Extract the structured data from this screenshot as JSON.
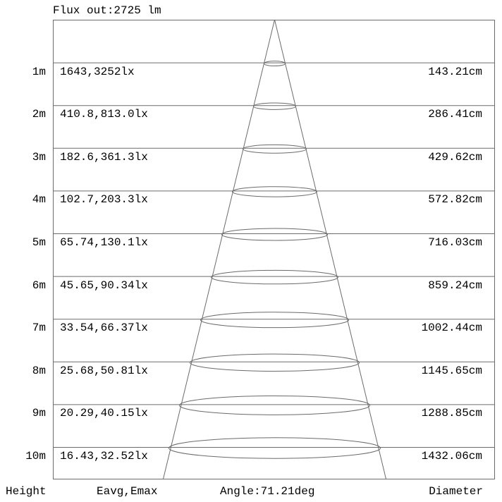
{
  "title": "Flux out:2725 lm",
  "footer": {
    "height_label": "Height",
    "eavg_label": "Eavg,Emax",
    "angle_label": "Angle:71.21deg",
    "diameter_label": "Diameter"
  },
  "rows": [
    {
      "height": "1m",
      "eavg_emax": "1643,3252lx",
      "diameter": "143.21cm"
    },
    {
      "height": "2m",
      "eavg_emax": "410.8,813.0lx",
      "diameter": "286.41cm"
    },
    {
      "height": "3m",
      "eavg_emax": "182.6,361.3lx",
      "diameter": "429.62cm"
    },
    {
      "height": "4m",
      "eavg_emax": "102.7,203.3lx",
      "diameter": "572.82cm"
    },
    {
      "height": "5m",
      "eavg_emax": "65.74,130.1lx",
      "diameter": "716.03cm"
    },
    {
      "height": "6m",
      "eavg_emax": "45.65,90.34lx",
      "diameter": "859.24cm"
    },
    {
      "height": "7m",
      "eavg_emax": "33.54,66.37lx",
      "diameter": "1002.44cm"
    },
    {
      "height": "8m",
      "eavg_emax": "25.68,50.81lx",
      "diameter": "1145.65cm"
    },
    {
      "height": "9m",
      "eavg_emax": "20.29,40.15lx",
      "diameter": "1288.85cm"
    },
    {
      "height": "10m",
      "eavg_emax": "16.43,32.52lx",
      "diameter": "1432.06cm"
    }
  ],
  "colors": {
    "line": "#6b6b6b",
    "text": "#000000",
    "background": "#ffffff"
  },
  "chart_data": {
    "type": "cone-diagram",
    "title": "Flux out:2725 lm",
    "flux_out_lm": 2725,
    "beam_angle_deg": 71.21,
    "heights_m": [
      1,
      2,
      3,
      4,
      5,
      6,
      7,
      8,
      9,
      10
    ],
    "eavg_lx": [
      1643,
      410.8,
      182.6,
      102.7,
      65.74,
      45.65,
      33.54,
      25.68,
      20.29,
      16.43
    ],
    "emax_lx": [
      3252,
      813.0,
      361.3,
      203.3,
      130.1,
      90.34,
      66.37,
      50.81,
      40.15,
      32.52
    ],
    "diameter_cm": [
      143.21,
      286.41,
      429.62,
      572.82,
      716.03,
      859.24,
      1002.44,
      1145.65,
      1288.85,
      1432.06
    ],
    "columns": [
      "Height",
      "Eavg,Emax",
      "Angle:71.21deg",
      "Diameter"
    ],
    "grid": true,
    "legend": false
  }
}
